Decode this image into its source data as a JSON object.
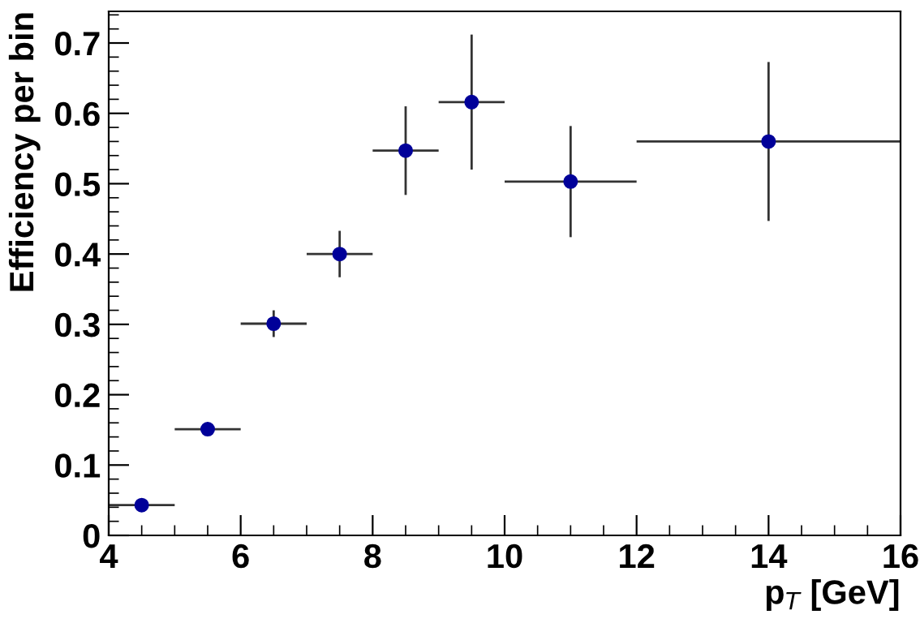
{
  "chart_data": {
    "type": "scatter",
    "xlabel": "p$_{T}$ [GeV]",
    "ylabel": "Efficiency per bin",
    "x": [
      4.5,
      5.5,
      6.5,
      7.5,
      8.5,
      9.5,
      11,
      14
    ],
    "series": [
      {
        "color": "#000099",
        "values": [
          0.043,
          0.151,
          0.301,
          0.4,
          0.547,
          0.616,
          0.503,
          0.56
        ],
        "errors": [
          null,
          null,
          0.019,
          0.033,
          0.063,
          0.096,
          0.079,
          0.113
        ],
        "xerrors": [
          0.5,
          0.5,
          0.5,
          0.5,
          0.5,
          0.5,
          1,
          2
        ]
      }
    ],
    "xlim": [
      4,
      16
    ],
    "xticks": [
      4,
      6,
      8,
      10,
      12,
      14,
      16
    ],
    "ylim": [
      0,
      0.745
    ],
    "yticks": [
      0,
      0.1,
      0.2,
      0.3,
      0.4,
      0.5,
      0.6,
      0.7
    ],
    "marker": "circle",
    "grid": false,
    "legend": false
  }
}
